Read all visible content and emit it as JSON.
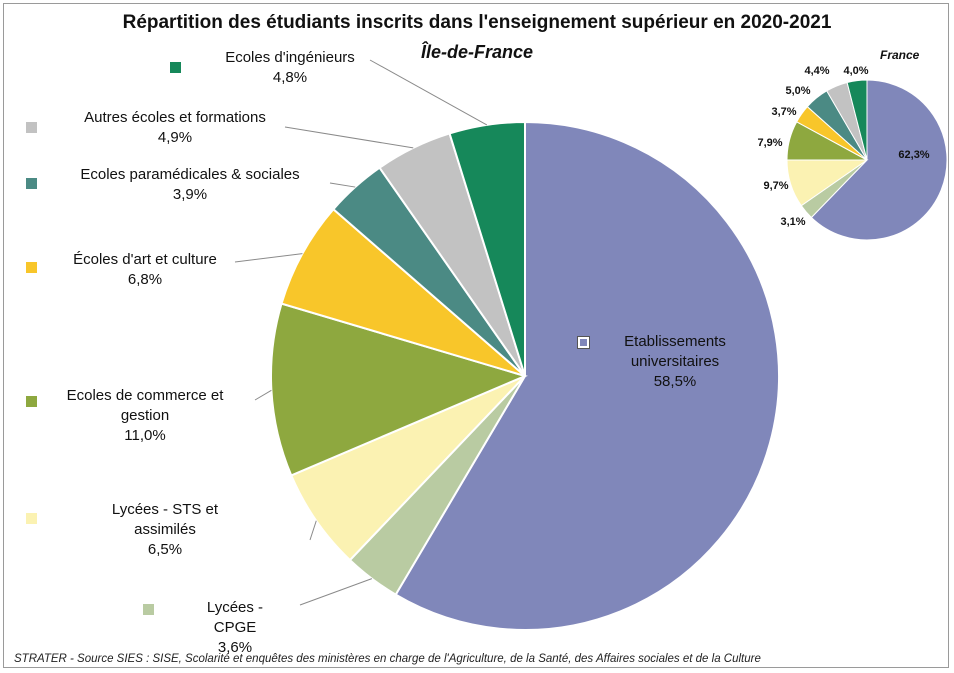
{
  "source": "STRATER - Source SIES : SISE, Scolarité et enquêtes des ministères en charge de l'Agriculture, de la Santé, des Affaires sociales et de la Culture",
  "chart_data": [
    {
      "type": "pie",
      "title": "Répartition des étudiants inscrits dans l'enseignement supérieur en 2020-2021",
      "subtitle": "Île-de-France",
      "categories": [
        "Etablissements universitaires",
        "Lycées - CPGE",
        "Lycées - STS et assimilés",
        "Ecoles de commerce et gestion",
        "Écoles d'art et culture",
        "Ecoles paramédicales & sociales",
        "Autres écoles et formations",
        "Ecoles d'ingénieurs"
      ],
      "values": [
        58.5,
        3.6,
        6.5,
        11.0,
        6.8,
        3.9,
        4.9,
        4.8
      ],
      "value_labels": [
        "58,5%",
        "3,6%",
        "6,5%",
        "11,0%",
        "6,8%",
        "3,9%",
        "4,9%",
        "4,8%"
      ],
      "colors": [
        "#8087ba",
        "#b9cba2",
        "#fbf2b2",
        "#8ea83f",
        "#f8c62a",
        "#4b8a84",
        "#c2c2c2",
        "#16885a"
      ]
    },
    {
      "type": "pie",
      "title": "France",
      "values": [
        62.3,
        3.1,
        9.7,
        7.9,
        3.7,
        5.0,
        4.4,
        4.0
      ],
      "value_labels": [
        "62,3%",
        "3,1%",
        "9,7%",
        "7,9%",
        "3,7%",
        "5,0%",
        "4,4%",
        "4,0%"
      ],
      "colors": [
        "#8087ba",
        "#b9cba2",
        "#fbf2b2",
        "#8ea83f",
        "#f8c62a",
        "#4b8a84",
        "#c2c2c2",
        "#16885a"
      ]
    }
  ]
}
